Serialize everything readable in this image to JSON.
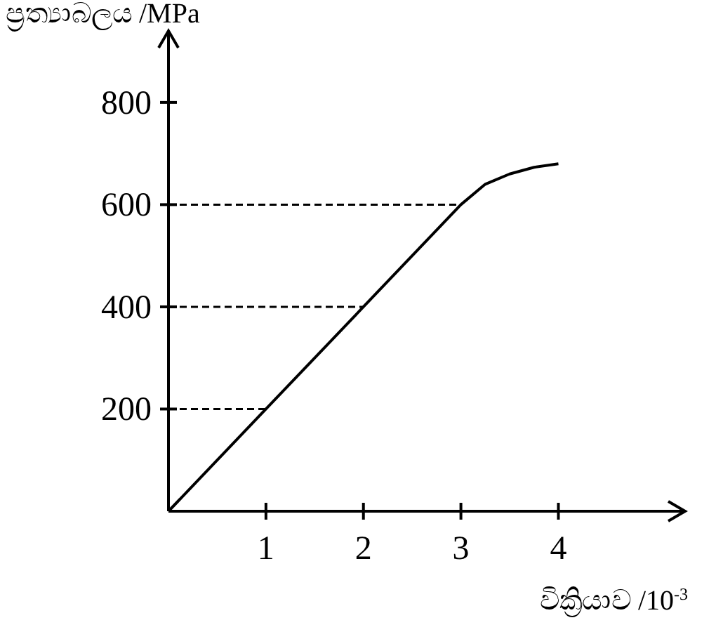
{
  "chart_data": {
    "type": "line",
    "xlabel": "වික්‍රියාව  /10$^{-3}$",
    "ylabel": "ප්‍රත්‍යාබලය  /MPa",
    "x": [
      0,
      1,
      2,
      3,
      3.25,
      3.5,
      3.75,
      4
    ],
    "series": [
      {
        "color": "#000000",
        "values": [
          0,
          200,
          400,
          600,
          640,
          660,
          673,
          680
        ]
      }
    ],
    "xlim": [
      0,
      5.3
    ],
    "ylim": [
      0,
      940
    ],
    "xticks": [
      1,
      2,
      3,
      4
    ],
    "yticks": [
      200,
      400,
      600,
      800
    ],
    "ref_lines": [
      {
        "axis": "y",
        "value": 200,
        "line_style": "dashed"
      },
      {
        "axis": "y",
        "value": 400,
        "line_style": "dashed"
      },
      {
        "axis": "y",
        "value": 600,
        "line_style": "dashed"
      }
    ],
    "marker": "none",
    "line_style": "solid",
    "grid": false
  }
}
